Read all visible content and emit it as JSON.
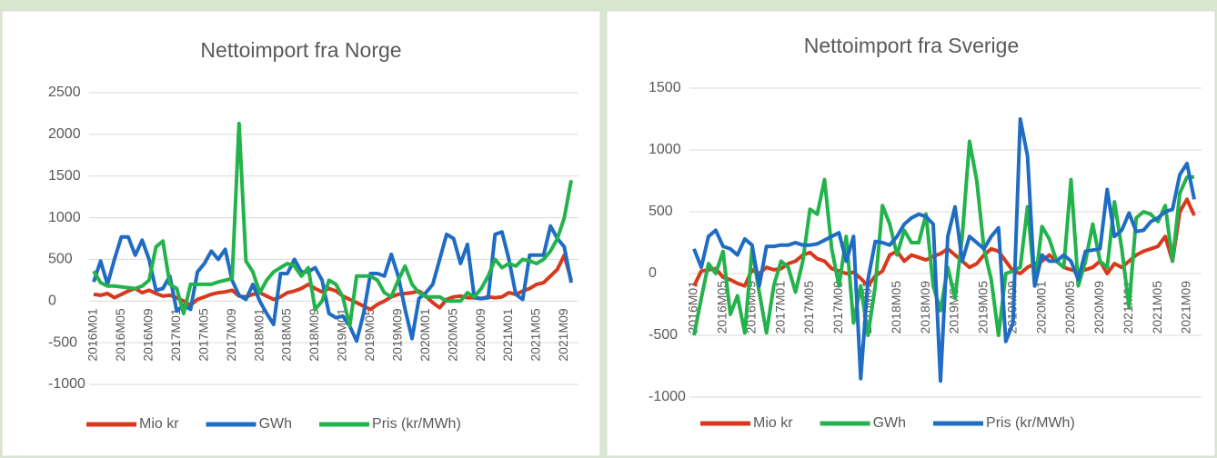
{
  "chart_data": [
    {
      "type": "line",
      "title": "Nettoimport fra Norge",
      "categories": [
        "2016M01",
        null,
        null,
        null,
        "2016M05",
        null,
        null,
        null,
        "2016M09",
        null,
        null,
        null,
        "2017M01",
        null,
        null,
        null,
        "2017M05",
        null,
        null,
        null,
        "2017M09",
        null,
        null,
        null,
        "2018M01",
        null,
        null,
        null,
        "2018M05",
        null,
        null,
        null,
        "2018M09",
        null,
        null,
        null,
        "2019M01",
        null,
        null,
        null,
        "2019M05",
        null,
        null,
        null,
        "2019M09",
        null,
        null,
        null,
        "2020M01",
        null,
        null,
        null,
        "2020M05",
        null,
        null,
        null,
        "2020M09",
        null,
        null,
        null,
        "2021M01",
        null,
        null,
        null,
        "2021M05",
        null,
        null,
        null,
        "2021M09",
        null
      ],
      "series": [
        {
          "name": "Mio kr",
          "color": "#d8381c",
          "values": [
            80,
            70,
            90,
            40,
            80,
            120,
            150,
            100,
            130,
            90,
            60,
            70,
            40,
            0,
            -50,
            20,
            50,
            80,
            100,
            110,
            130,
            60,
            50,
            80,
            100,
            60,
            20,
            50,
            100,
            120,
            150,
            200,
            150,
            110,
            150,
            120,
            60,
            20,
            -20,
            -60,
            -100,
            -40,
            0,
            50,
            80,
            90,
            100,
            120,
            60,
            -20,
            -80,
            20,
            50,
            60,
            40,
            40,
            30,
            50,
            40,
            50,
            100,
            80,
            120,
            150,
            200,
            220,
            300,
            380,
            550,
            250
          ]
        },
        {
          "name": "GWh",
          "color": "#1f6cc4",
          "values": [
            230,
            480,
            200,
            500,
            770,
            770,
            550,
            730,
            500,
            130,
            150,
            300,
            -120,
            -50,
            -100,
            350,
            450,
            600,
            500,
            620,
            250,
            70,
            20,
            200,
            0,
            -150,
            -280,
            330,
            330,
            500,
            350,
            350,
            400,
            250,
            -150,
            -200,
            -180,
            -300,
            -480,
            -150,
            330,
            330,
            300,
            560,
            300,
            -100,
            -450,
            30,
            100,
            200,
            500,
            800,
            750,
            450,
            680,
            40,
            30,
            40,
            800,
            830,
            500,
            80,
            20,
            550,
            550,
            550,
            900,
            750,
            650,
            220
          ]
        },
        {
          "name": "Pris (kr/MWh)",
          "color": "#23b24b",
          "values": [
            360,
            220,
            180,
            180,
            170,
            160,
            150,
            180,
            250,
            650,
            720,
            200,
            150,
            -150,
            200,
            200,
            200,
            200,
            230,
            250,
            270,
            2130,
            480,
            350,
            100,
            250,
            350,
            400,
            450,
            420,
            300,
            400,
            -100,
            0,
            250,
            200,
            50,
            -300,
            300,
            300,
            300,
            250,
            100,
            50,
            250,
            420,
            200,
            100,
            50,
            50,
            50,
            0,
            0,
            0,
            100,
            50,
            150,
            300,
            500,
            400,
            450,
            420,
            500,
            480,
            450,
            500,
            600,
            750,
            1000,
            1450
          ]
        }
      ],
      "ylim": [
        -1000,
        2500
      ],
      "yticks": [
        -1000,
        -500,
        0,
        500,
        1000,
        1500,
        2000,
        2500
      ],
      "grid": true,
      "legend": "bottom"
    },
    {
      "type": "line",
      "title": "Nettoimport fra Sverige",
      "categories": [
        "2016M01",
        null,
        null,
        null,
        "2016M05",
        null,
        null,
        null,
        "2016M09",
        null,
        null,
        null,
        "2017M01",
        null,
        null,
        null,
        "2017M05",
        null,
        null,
        null,
        "2017M09",
        null,
        null,
        null,
        "2018M01",
        null,
        null,
        null,
        "2018M05",
        null,
        null,
        null,
        "2018M09",
        null,
        null,
        null,
        "2019M01",
        null,
        null,
        null,
        "2019M05",
        null,
        null,
        null,
        "2019M09",
        null,
        null,
        null,
        "2020M01",
        null,
        null,
        null,
        "2020M05",
        null,
        null,
        null,
        "2020M09",
        null,
        null,
        null,
        "2021M01",
        null,
        null,
        null,
        "2021M05",
        null,
        null,
        null,
        "2021M09",
        null
      ],
      "series": [
        {
          "name": "Mio kr",
          "color": "#d8381c",
          "values": [
            -100,
            20,
            30,
            40,
            -30,
            -50,
            -80,
            -100,
            30,
            0,
            50,
            30,
            40,
            80,
            100,
            150,
            170,
            120,
            100,
            40,
            20,
            0,
            10,
            -40,
            -100,
            -20,
            20,
            150,
            180,
            100,
            150,
            130,
            110,
            140,
            160,
            200,
            150,
            100,
            50,
            80,
            150,
            200,
            180,
            100,
            20,
            0,
            50,
            80,
            100,
            150,
            100,
            50,
            30,
            20,
            30,
            50,
            100,
            0,
            80,
            50,
            100,
            150,
            180,
            200,
            220,
            300,
            100,
            500,
            600,
            470
          ]
        },
        {
          "name": "GWh",
          "color": "#23b24b",
          "values": [
            -500,
            -200,
            80,
            0,
            180,
            -330,
            -180,
            -480,
            200,
            -150,
            -480,
            -100,
            100,
            50,
            -150,
            100,
            520,
            480,
            760,
            200,
            -100,
            300,
            -400,
            -100,
            -500,
            -100,
            550,
            400,
            150,
            350,
            250,
            250,
            480,
            -100,
            -300,
            50,
            -200,
            300,
            1070,
            750,
            200,
            -50,
            -500,
            0,
            20,
            50,
            540,
            -100,
            380,
            280,
            100,
            50,
            760,
            -100,
            100,
            400,
            100,
            50,
            580,
            200,
            -270,
            450,
            500,
            480,
            420,
            550,
            100,
            650,
            780,
            780
          ]
        },
        {
          "name": "Pris (kr/MWh)",
          "color": "#1f6cc4",
          "values": [
            200,
            50,
            300,
            350,
            220,
            200,
            150,
            280,
            230,
            -100,
            220,
            220,
            230,
            230,
            250,
            230,
            230,
            240,
            270,
            300,
            330,
            100,
            300,
            -850,
            -50,
            260,
            250,
            230,
            300,
            400,
            450,
            480,
            460,
            400,
            -870,
            300,
            540,
            100,
            300,
            250,
            200,
            300,
            370,
            -550,
            -400,
            1250,
            950,
            -100,
            150,
            100,
            100,
            150,
            100,
            -50,
            180,
            190,
            200,
            680,
            300,
            350,
            490,
            340,
            350,
            420,
            450,
            500,
            520,
            800,
            890,
            600
          ]
        }
      ],
      "ylim": [
        -1000,
        1500
      ],
      "yticks": [
        -1000,
        -500,
        0,
        500,
        1000,
        1500
      ],
      "grid": true,
      "legend": "bottom"
    }
  ]
}
